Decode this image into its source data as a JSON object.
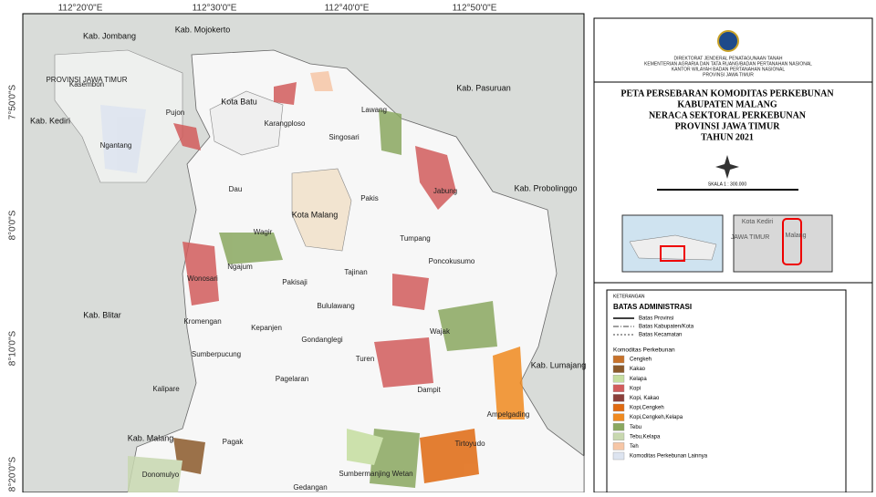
{
  "coords": {
    "top": [
      "112°20'0\"E",
      "112°30'0\"E",
      "112°40'0\"E",
      "112°50'0\"E"
    ],
    "left": [
      "7°50'0\"S",
      "8°0'0\"S",
      "8°10'0\"S",
      "8°20'0\"S"
    ]
  },
  "places": [
    "Kab. Jombang",
    "Kab. Mojokerto",
    "PROVINSI JAWA TIMUR",
    "Kasembon",
    "Kota Batu",
    "Pujon",
    "Kab. Kediri",
    "Ngantang",
    "Karangploso",
    "Singosari",
    "Lawang",
    "Kab. Pasuruan",
    "Dau",
    "Kota Malang",
    "Pakis",
    "Jabung",
    "Kab. Probolinggo",
    "Wagir",
    "Tumpang",
    "Poncokusumo",
    "Ngajum",
    "Tajinan",
    "Wonosari",
    "Pakisaji",
    "Bululawang",
    "Kab. Blitar",
    "Kromengan",
    "Kepanjen",
    "Wajak",
    "Gondanglegi",
    "Sumberpucung",
    "Turen",
    "Kab. Lumajang",
    "Kalipare",
    "Pagelaran",
    "Dampit",
    "Ampelgading",
    "Kab. Malang",
    "Pagak",
    "Tirtoyudo",
    "Donomulyo",
    "Sumbermanjing Wetan",
    "Gedangan"
  ],
  "header": {
    "org": [
      "DIREKTORAT JENDERAL PENATAGUNAAN TANAH",
      "KEMENTERIAN AGRARIA DAN TATA RUANG/BADAN PERTANAHAN NASIONAL",
      "KANTOR WILAYAH BADAN PERTANAHAN NASIONAL",
      "PROVINSI JAWA TIMUR"
    ],
    "title": [
      "PETA PERSEBARAN KOMODITAS PERKEBUNAN",
      "KABUPATEN MALANG",
      "NERACA SEKTORAL PERKEBUNAN",
      "PROVINSI JAWA TIMUR",
      "TAHUN 2021"
    ],
    "scale": "SKALA 1 : 300.000"
  },
  "inset": {
    "labels": [
      "JAWA TIMUR",
      "Kota Kediri",
      "Malang"
    ]
  },
  "legend": {
    "heading": "KETERANGAN",
    "admin_title": "BATAS ADMINISTRASI",
    "admin": [
      "Batas Provinsi",
      "Batas Kabupaten/Kota",
      "Batas Kecamatan"
    ],
    "commodity_title": "Komoditas Perkebunan",
    "items": [
      {
        "name": "Cengkeh",
        "color": "#c8722a"
      },
      {
        "name": "Kakao",
        "color": "#8b5a2b"
      },
      {
        "name": "Kelapa",
        "color": "#c5dea0"
      },
      {
        "name": "Kopi",
        "color": "#d25c5c"
      },
      {
        "name": "Kopi, Kakao",
        "color": "#8b3f3a"
      },
      {
        "name": "Kopi,Cengkeh",
        "color": "#e06a10"
      },
      {
        "name": "Kopi,Cengkeh,Kelapa",
        "color": "#f08a20"
      },
      {
        "name": "Tebu",
        "color": "#8aa860"
      },
      {
        "name": "Tebu,Kelapa",
        "color": "#c8d8b0"
      },
      {
        "name": "Teh",
        "color": "#f6c6a6"
      },
      {
        "name": "Komoditas Perkebunan Lainnya",
        "color": "#dde4f0"
      }
    ]
  }
}
